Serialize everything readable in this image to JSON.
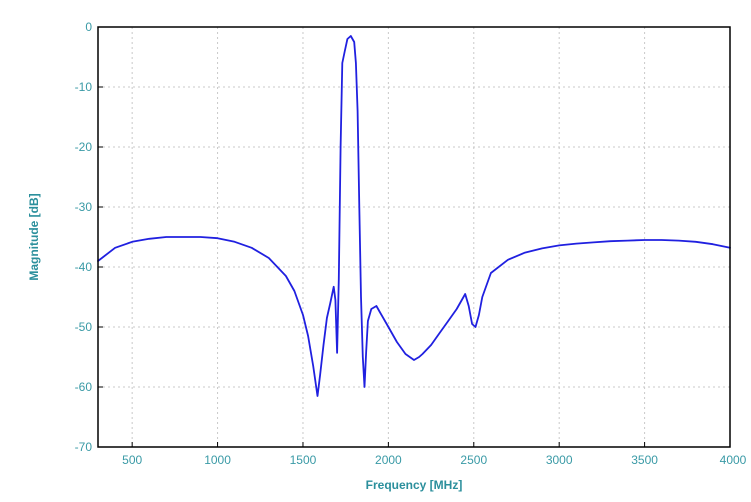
{
  "chart_data": {
    "type": "line",
    "title": "",
    "xlabel": "Frequency [MHz]",
    "ylabel": "Magnitude [dB]",
    "xlim": [
      300,
      4000
    ],
    "ylim": [
      -70,
      0
    ],
    "x_ticks": [
      500,
      1000,
      1500,
      2000,
      2500,
      3000,
      3500,
      4000
    ],
    "y_ticks": [
      0,
      -10,
      -20,
      -30,
      -40,
      -50,
      -60,
      -70
    ],
    "grid": true,
    "legend": "none",
    "colors": {
      "line": "#2020e0",
      "tick_label": "#3a9aa6",
      "axis_title": "#2b8f9c",
      "grid": "#c9c9c9"
    },
    "series": [
      {
        "x": [
          300,
          400,
          500,
          600,
          700,
          800,
          900,
          1000,
          1100,
          1200,
          1300,
          1400,
          1450,
          1500,
          1530,
          1560,
          1585,
          1600,
          1620,
          1640,
          1660,
          1680,
          1690,
          1700,
          1710,
          1720,
          1730,
          1745,
          1760,
          1780,
          1800,
          1810,
          1820,
          1830,
          1840,
          1850,
          1860,
          1870,
          1880,
          1900,
          1930,
          1950,
          2000,
          2050,
          2100,
          2150,
          2180,
          2200,
          2250,
          2300,
          2350,
          2400,
          2430,
          2450,
          2470,
          2490,
          2510,
          2530,
          2550,
          2600,
          2700,
          2800,
          2900,
          3000,
          3100,
          3200,
          3300,
          3400,
          3500,
          3600,
          3700,
          3800,
          3900,
          4000
        ],
        "values": [
          -39,
          -36.8,
          -35.8,
          -35.3,
          -35,
          -35,
          -35,
          -35.2,
          -35.8,
          -36.8,
          -38.5,
          -41.5,
          -44,
          -48,
          -51.5,
          -56.5,
          -61.5,
          -58,
          -53,
          -48.5,
          -46,
          -43.3,
          -45.5,
          -54.3,
          -42,
          -20,
          -6,
          -4,
          -2,
          -1.5,
          -2.5,
          -6,
          -14,
          -30,
          -45,
          -55,
          -60,
          -54,
          -49,
          -47,
          -46.5,
          -47.5,
          -50,
          -52.5,
          -54.5,
          -55.5,
          -55,
          -54.5,
          -53,
          -51,
          -49,
          -47,
          -45.5,
          -44.5,
          -46.5,
          -49.5,
          -50,
          -48,
          -45,
          -41,
          -38.8,
          -37.6,
          -36.9,
          -36.4,
          -36.1,
          -35.9,
          -35.7,
          -35.6,
          -35.5,
          -35.5,
          -35.6,
          -35.8,
          -36.2,
          -36.8
        ]
      }
    ]
  }
}
